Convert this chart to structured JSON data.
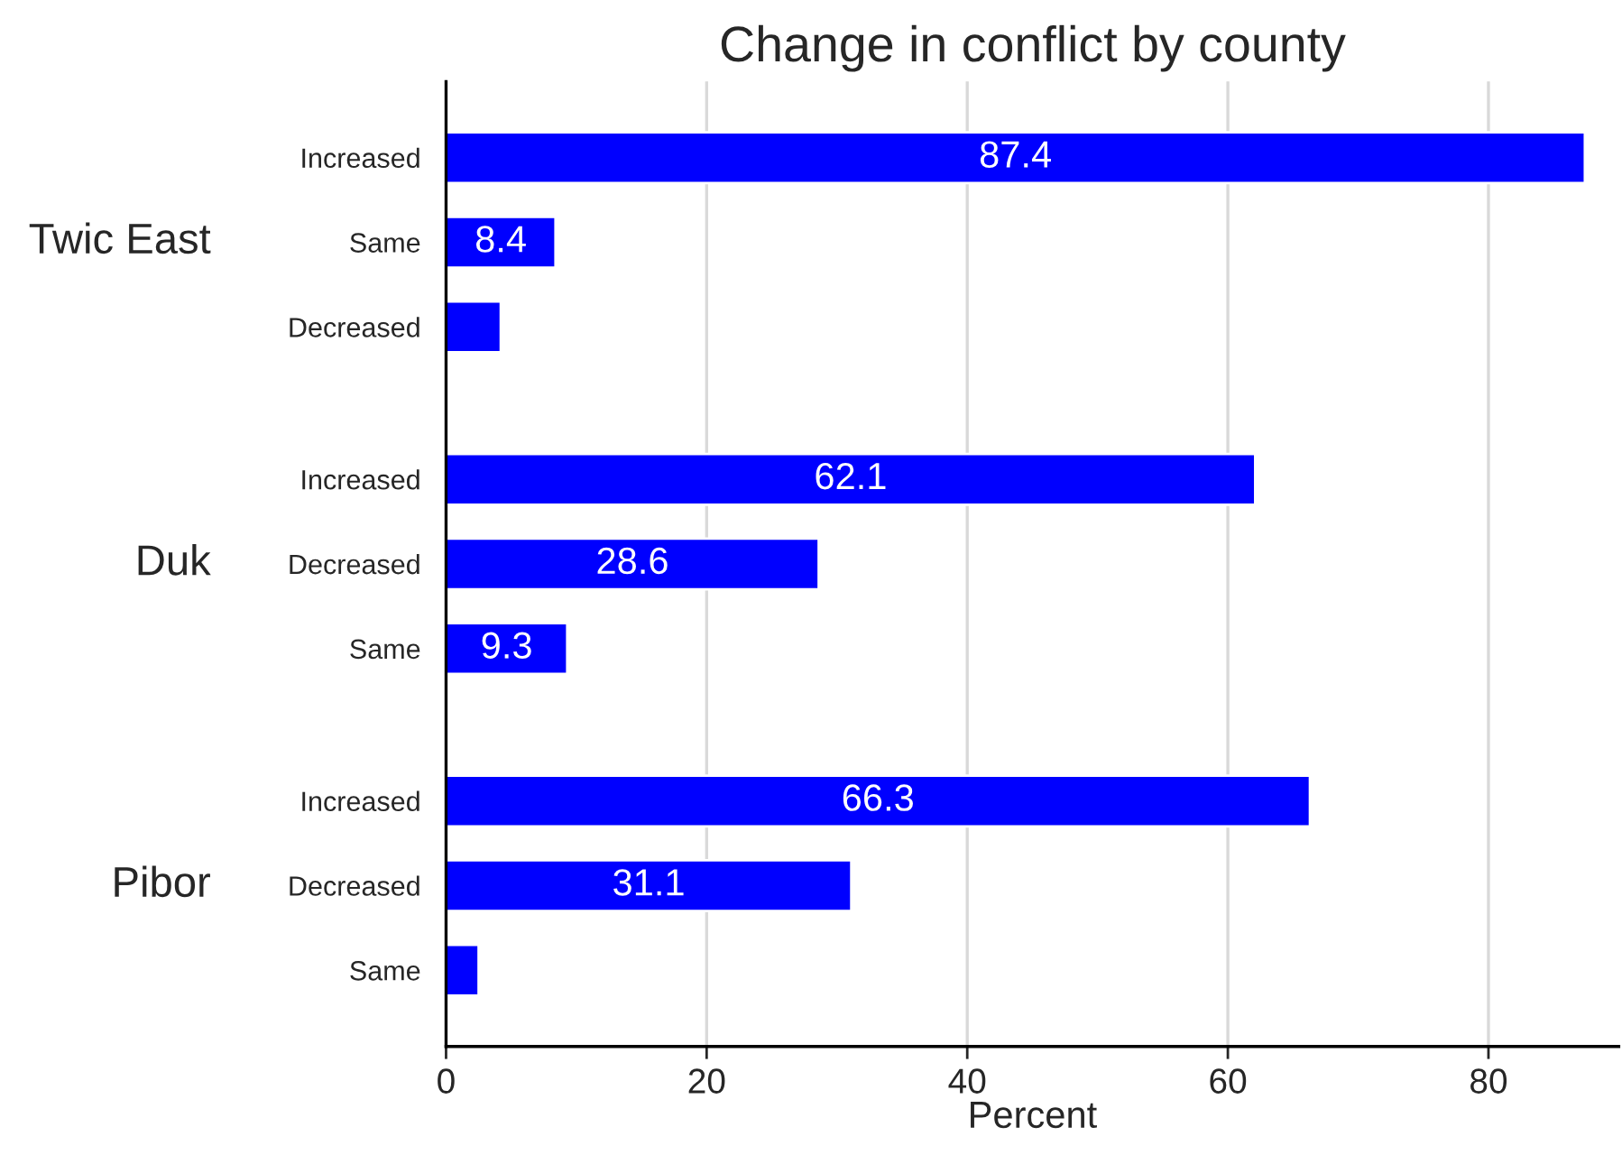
{
  "chart_data": {
    "type": "bar",
    "orientation": "horizontal",
    "title": "Change in conflict by county",
    "xlabel": "Percent",
    "categories": [
      "Increased",
      "Same",
      "Decreased",
      "Increased",
      "Decreased",
      "Same",
      "Increased",
      "Decreased",
      "Same"
    ],
    "values": [
      87.4,
      8.4,
      4.2,
      62.1,
      28.6,
      9.3,
      66.3,
      31.1,
      2.5
    ],
    "value_labels": [
      "87.4",
      "8.4",
      null,
      "62.1",
      "28.6",
      "9.3",
      "66.3",
      "31.1",
      null
    ],
    "color": "#0000ff",
    "annotations": [
      "Twic East",
      "Duk",
      "Pibor"
    ],
    "xlim": [
      0,
      90
    ],
    "xticks": [
      0,
      20,
      40,
      60,
      80
    ],
    "grid": "x"
  }
}
